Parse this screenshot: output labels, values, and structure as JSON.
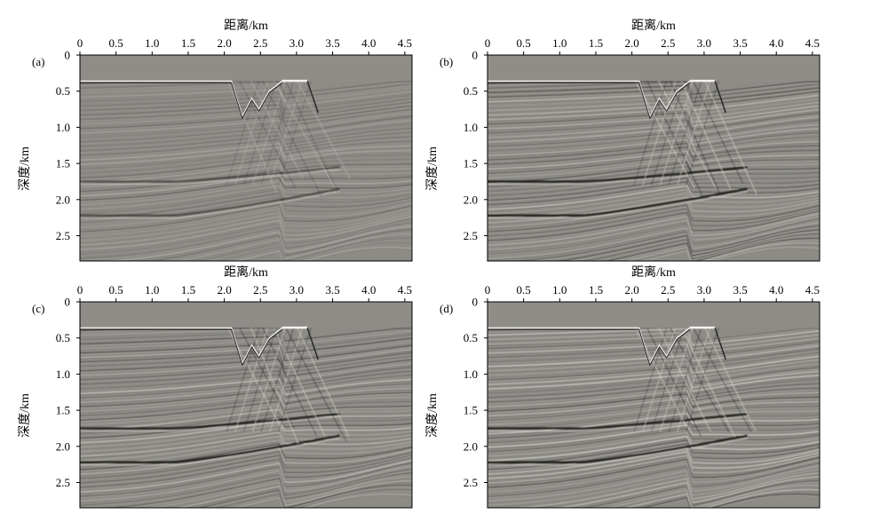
{
  "figure": {
    "panels": [
      {
        "id": "a",
        "label": "(a)"
      },
      {
        "id": "b",
        "label": "(b)"
      },
      {
        "id": "c",
        "label": "(c)"
      },
      {
        "id": "d",
        "label": "(d)"
      }
    ],
    "x_axis_label": "距离/km",
    "y_axis_label": "深度/km",
    "x_ticks": [
      "0",
      "0.5",
      "1.0",
      "1.5",
      "2.0",
      "2.5",
      "3.0",
      "3.5",
      "4.0",
      "4.5"
    ],
    "y_ticks": [
      "0",
      "0.5",
      "1.0",
      "1.5",
      "2.0",
      "2.5"
    ],
    "background_color": "#8d8b86"
  },
  "chart_data": [
    {
      "type": "heatmap",
      "panel": "(a)",
      "xlabel": "距离/km",
      "ylabel": "深度/km",
      "xlim": [
        0,
        4.6
      ],
      "ylim": [
        0,
        2.85
      ],
      "x_ticks": [
        0,
        0.5,
        1.0,
        1.5,
        2.0,
        2.5,
        3.0,
        3.5,
        4.0,
        4.5
      ],
      "y_ticks": [
        0,
        0.5,
        1.0,
        1.5,
        2.0,
        2.5
      ],
      "y_reversed": true
    },
    {
      "type": "heatmap",
      "panel": "(b)",
      "xlabel": "距离/km",
      "ylabel": "深度/km",
      "xlim": [
        0,
        4.6
      ],
      "ylim": [
        0,
        2.85
      ],
      "x_ticks": [
        0,
        0.5,
        1.0,
        1.5,
        2.0,
        2.5,
        3.0,
        3.5,
        4.0,
        4.5
      ],
      "y_ticks": [
        0,
        0.5,
        1.0,
        1.5,
        2.0,
        2.5
      ],
      "y_reversed": true
    },
    {
      "type": "heatmap",
      "panel": "(c)",
      "xlabel": "距离/km",
      "ylabel": "深度/km",
      "xlim": [
        0,
        4.6
      ],
      "ylim": [
        0,
        2.85
      ],
      "x_ticks": [
        0,
        0.5,
        1.0,
        1.5,
        2.0,
        2.5,
        3.0,
        3.5,
        4.0,
        4.5
      ],
      "y_ticks": [
        0,
        0.5,
        1.0,
        1.5,
        2.0,
        2.5
      ],
      "y_reversed": true
    },
    {
      "type": "heatmap",
      "panel": "(d)",
      "xlabel": "距离/km",
      "ylabel": "深度/km",
      "xlim": [
        0,
        4.6
      ],
      "ylim": [
        0,
        2.85
      ],
      "x_ticks": [
        0,
        0.5,
        1.0,
        1.5,
        2.0,
        2.5,
        3.0,
        3.5,
        4.0,
        4.5
      ],
      "y_ticks": [
        0,
        0.5,
        1.0,
        1.5,
        2.0,
        2.5
      ],
      "y_reversed": true
    }
  ]
}
